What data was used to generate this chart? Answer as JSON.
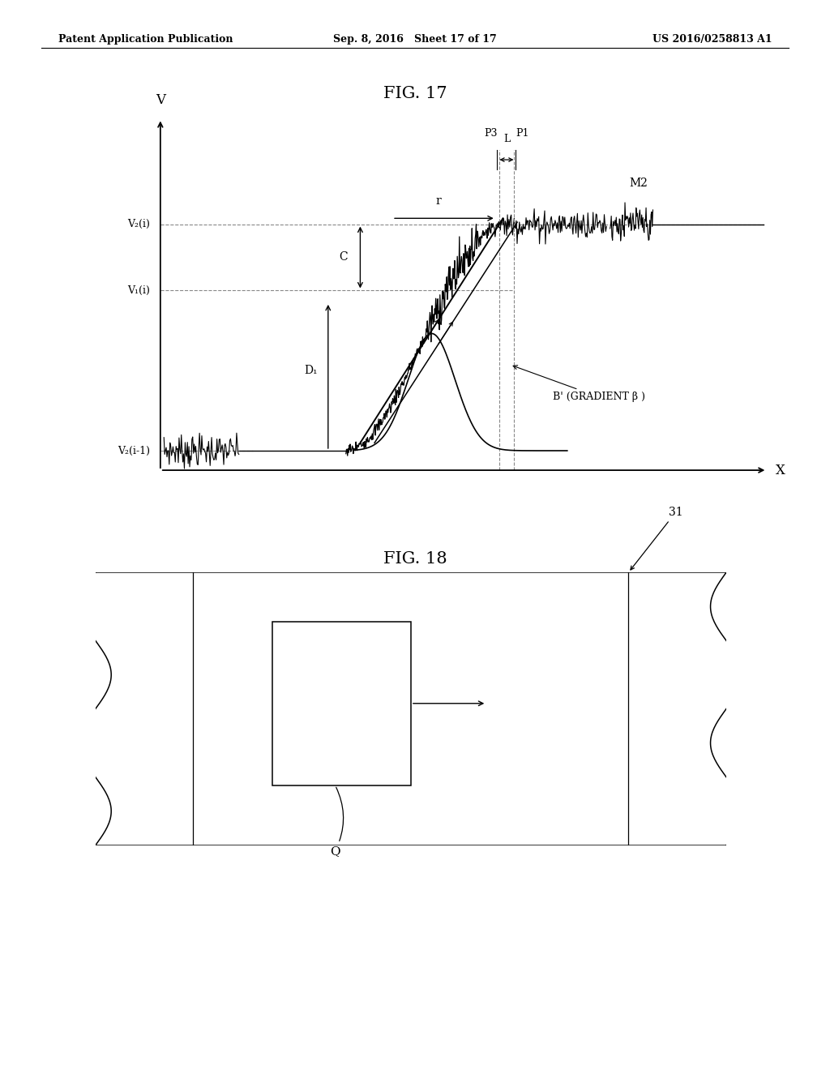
{
  "bg_color": "#ffffff",
  "header_left": "Patent Application Publication",
  "header_center": "Sep. 8, 2016   Sheet 17 of 17",
  "header_right": "US 2016/0258813 A1",
  "fig17_title": "FIG. 17",
  "fig18_title": "FIG. 18",
  "fig17_xlabel": "X",
  "fig17_ylabel": "V",
  "label_v2i": "V₂(i)",
  "label_v1i": "V₁(i)",
  "label_v2i1": "V₂(i-1)",
  "label_C": "C",
  "label_D1": "D₁",
  "label_r": "r",
  "label_L": "L",
  "label_P3": "P3",
  "label_P1": "P1",
  "label_M2": "M2",
  "label_B_prime": "B' (GRADIENT β )",
  "label_31": "31",
  "label_Q": "Q"
}
